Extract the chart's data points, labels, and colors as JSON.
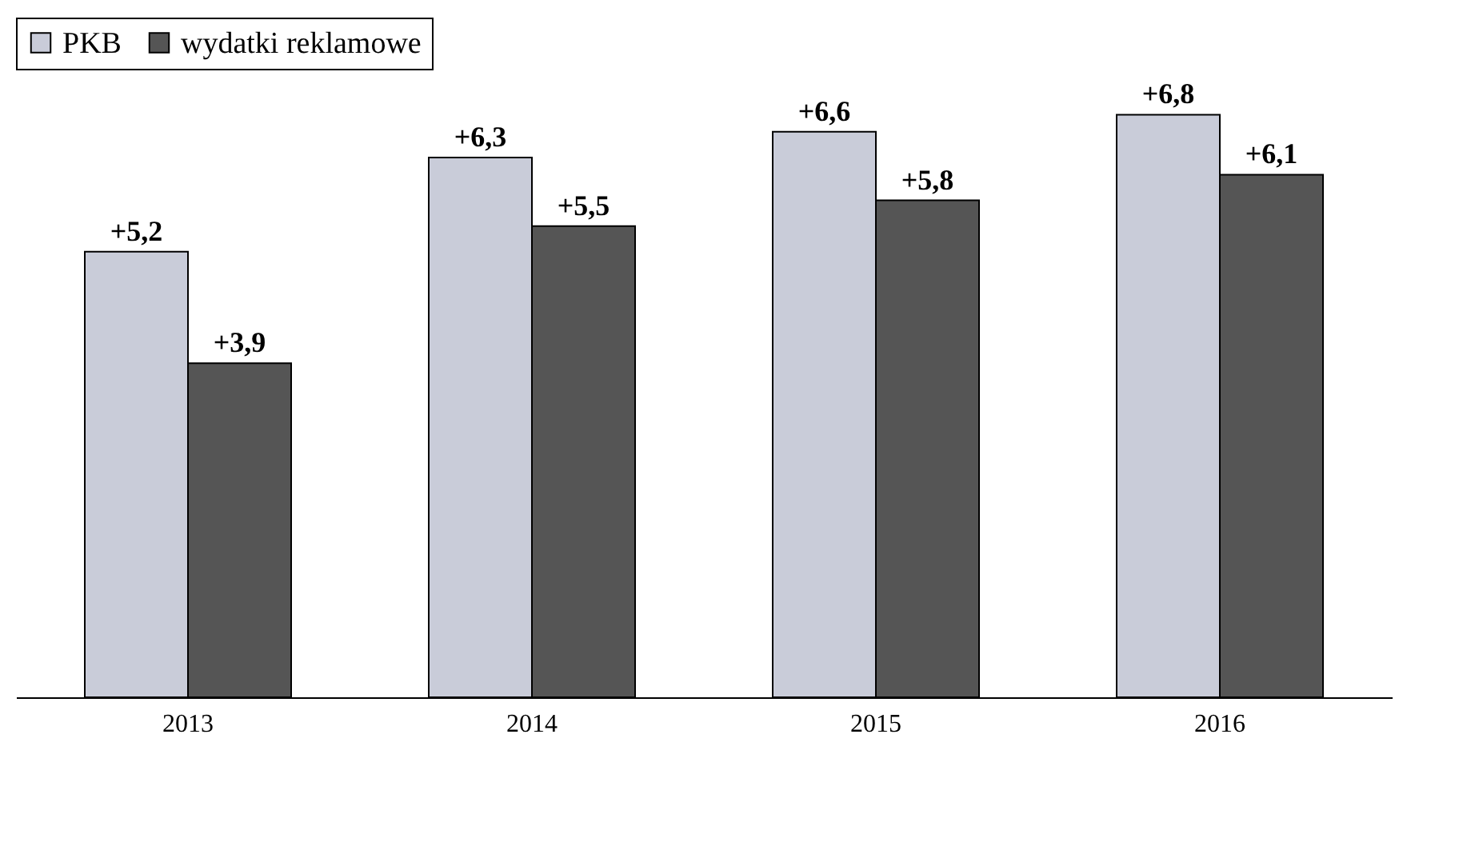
{
  "chart_data": {
    "type": "bar",
    "categories": [
      "2013",
      "2014",
      "2015",
      "2016"
    ],
    "series": [
      {
        "name": "PKB",
        "color": "#c9ccd9",
        "values": [
          5.2,
          6.3,
          6.6,
          6.8
        ],
        "value_labels": [
          "+5,2",
          "+6,3",
          "+6,6",
          "+6,8"
        ]
      },
      {
        "name": "wydatki reklamowe",
        "color": "#555555",
        "values": [
          3.9,
          5.5,
          5.8,
          6.1
        ],
        "value_labels": [
          "+3,9",
          "+5,5",
          "+5,8",
          "+6,1"
        ]
      }
    ],
    "legend": "top left",
    "grid": false
  }
}
